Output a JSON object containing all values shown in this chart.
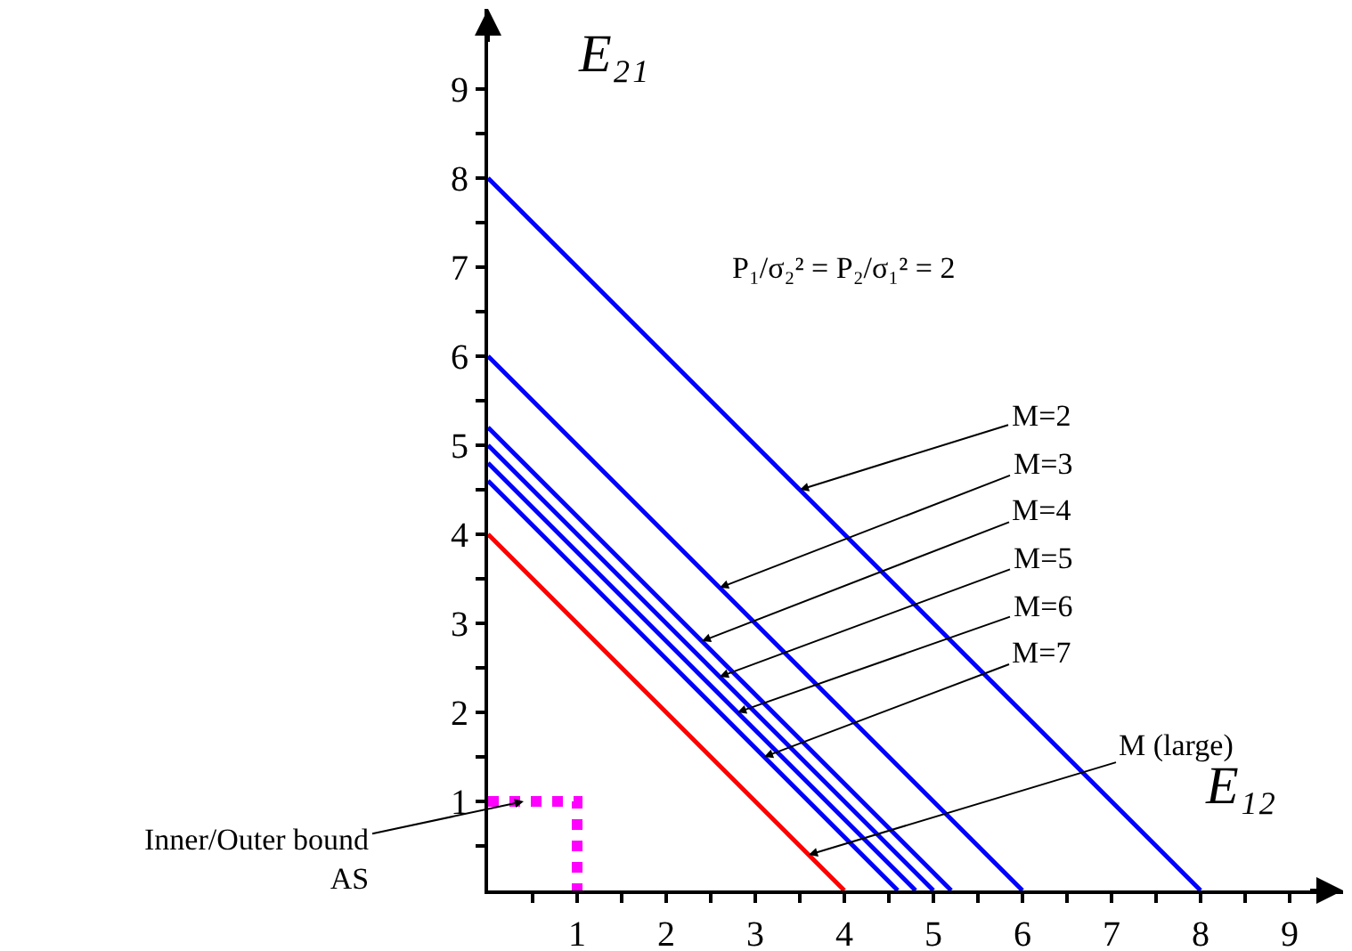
{
  "chart_data": {
    "type": "line",
    "xlabel": "E₁₂",
    "ylabel": "E₂₁",
    "xlim": [
      0,
      9.6
    ],
    "ylim": [
      0,
      9.9
    ],
    "xticks": [
      {
        "value": 0.5,
        "label": null
      },
      1,
      {
        "value": 1.5,
        "label": null
      },
      2,
      {
        "value": 2.5,
        "label": null
      },
      3,
      {
        "value": 3.5,
        "label": null
      },
      4,
      {
        "value": 4.5,
        "label": null
      },
      5,
      {
        "value": 5.5,
        "label": null
      },
      6,
      {
        "value": 6.5,
        "label": null
      },
      7,
      {
        "value": 7.5,
        "label": null
      },
      8,
      {
        "value": 8.5,
        "label": null
      },
      9
    ],
    "yticks": [
      {
        "value": 0.5,
        "label": null
      },
      1,
      {
        "value": 1.5,
        "label": null
      },
      2,
      {
        "value": 2.5,
        "label": null
      },
      3,
      {
        "value": 3.5,
        "label": null
      },
      4,
      {
        "value": 4.5,
        "label": null
      },
      5,
      {
        "value": 5.5,
        "label": null
      },
      6,
      {
        "value": 6.5,
        "label": null
      },
      7,
      {
        "value": 7.5,
        "label": null
      },
      8,
      {
        "value": 8.5,
        "label": null
      },
      9
    ],
    "grid": false,
    "marker": "none",
    "series": [
      {
        "color": "#0000ff",
        "x": [
          0,
          8
        ],
        "values": [
          8,
          0
        ]
      },
      {
        "color": "#0000ff",
        "x": [
          0,
          6
        ],
        "values": [
          6,
          0
        ]
      },
      {
        "color": "#0000ff",
        "x": [
          0,
          5.2
        ],
        "values": [
          5.2,
          0
        ]
      },
      {
        "color": "#0000ff",
        "x": [
          0,
          5.0
        ],
        "values": [
          5.0,
          0
        ]
      },
      {
        "color": "#0000ff",
        "x": [
          0,
          4.8
        ],
        "values": [
          4.8,
          0
        ]
      },
      {
        "color": "#0000ff",
        "x": [
          0,
          4.6
        ],
        "values": [
          4.6,
          0
        ]
      },
      {
        "color": "#ff0000",
        "x": [
          0,
          4
        ],
        "values": [
          4,
          0
        ]
      },
      {
        "color": "#ff00ff",
        "line_style": "dotted",
        "x": [
          0,
          1,
          1
        ],
        "values": [
          1,
          1,
          0
        ]
      }
    ],
    "annotations": [
      {
        "text": "M=2",
        "x": 3.5,
        "y": 4.5
      },
      {
        "text": "M=3",
        "x": 2.6,
        "y": 3.4
      },
      {
        "text": "M=4",
        "x": 2.4,
        "y": 2.8
      },
      {
        "text": "M=5",
        "x": 2.6,
        "y": 2.4
      },
      {
        "text": "M=6",
        "x": 2.8,
        "y": 2.0
      },
      {
        "text": "M=7",
        "x": 3.1,
        "y": 1.5
      },
      {
        "text": "M (large)",
        "x": 3.6,
        "y": 0.4
      },
      {
        "text": "Inner/Outer bound\nAS",
        "x": 0.4,
        "y": 1.0
      },
      "P₁/σ₂² = P₂/σ₁² = 2"
    ]
  }
}
